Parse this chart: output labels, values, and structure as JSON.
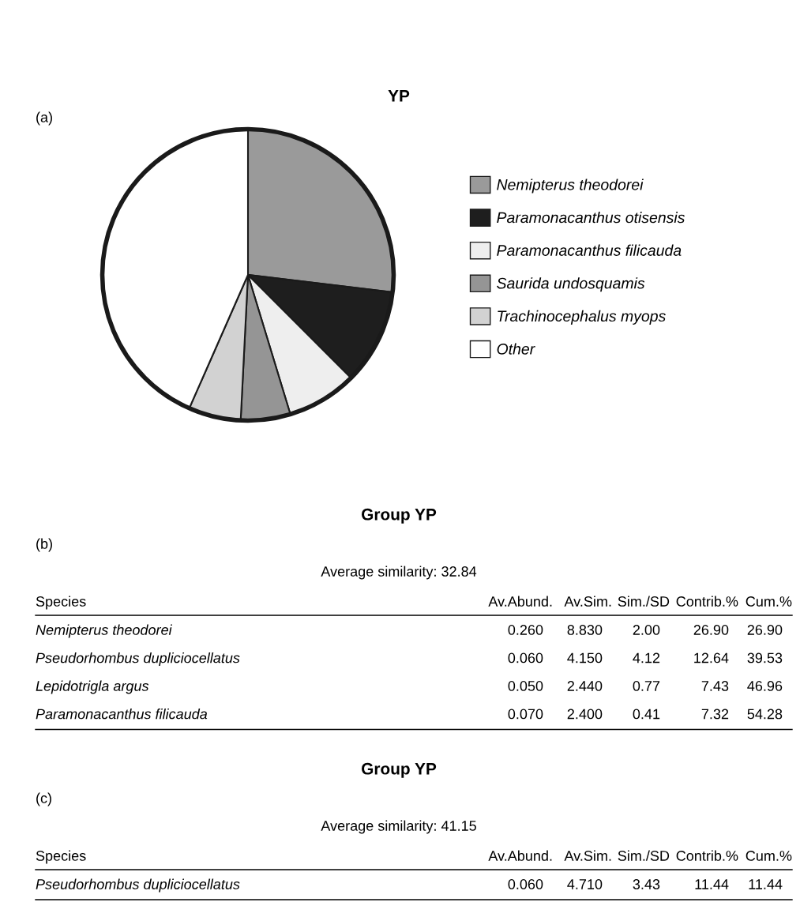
{
  "chart_data": [
    {
      "type": "pie",
      "title": "YP",
      "annotations": [
        "(a)"
      ],
      "legend": "right",
      "categories": [
        "Nemipterus theodorei",
        "Paramonacanthus otisensis",
        "Paramonacanthus filicauda",
        "Saurida undosquamis",
        "Trachinocephalus myops",
        "Other"
      ],
      "values": [
        26.9,
        10.6,
        7.8,
        5.5,
        5.8,
        43.4
      ],
      "colors": [
        "#9a9a9a",
        "#1e1e1e",
        "#eeeeee",
        "#959595",
        "#d2d2d2",
        "#ffffff"
      ]
    },
    {
      "type": "other",
      "title": "Group YP",
      "subtitle": "Average similarity: 32.84",
      "annotations": [
        "(b)"
      ],
      "ylabel": "Species",
      "categories": [
        "Av.Abund.",
        "Av.Sim.",
        "Sim./SD",
        "Contrib.%",
        "Cum.%"
      ],
      "y_categories": [
        "Nemipterus theodorei",
        "Pseudorhombus dupliciocellatus",
        "Lepidotrigla argus",
        "Paramonacanthus filicauda"
      ],
      "cell_labels": [
        [
          "0.260",
          "8.830",
          "2.00",
          "26.90",
          "26.90"
        ],
        [
          "0.060",
          "4.150",
          "4.12",
          "12.64",
          "39.53"
        ],
        [
          "0.050",
          "2.440",
          "0.77",
          "7.43",
          "46.96"
        ],
        [
          "0.070",
          "2.400",
          "0.41",
          "7.32",
          "54.28"
        ]
      ]
    },
    {
      "type": "other",
      "title": "Group YP",
      "subtitle": "Average similarity: 41.15",
      "annotations": [
        "(c)"
      ],
      "ylabel": "Species",
      "categories": [
        "Av.Abund.",
        "Av.Sim.",
        "Sim./SD",
        "Contrib.%",
        "Cum.%"
      ],
      "y_categories": [
        "Pseudorhombus dupliciocellatus"
      ],
      "cell_labels": [
        [
          "0.060",
          "4.710",
          "3.43",
          "11.44",
          "11.44"
        ]
      ]
    }
  ]
}
